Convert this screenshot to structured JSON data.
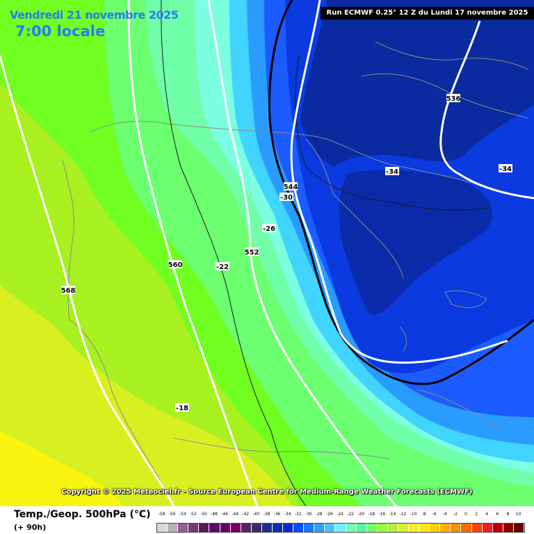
{
  "header": {
    "date": "Vendredi 21 novembre 2025",
    "time": "7:00 locale",
    "run_info": "Run ECMWF 0.25° 12 Z du Lundi 17 novembre 2025"
  },
  "copyright": "Copyright © 2025 Meteociel.fr - Source European Centre for Medium-Range Weather Forecasts (ECMWF)",
  "footer": {
    "title": "Temp./Geop. 500hPa (°C)",
    "step": "(+ 90h)"
  },
  "legend": {
    "labels": [
      "-58",
      "-56",
      "-54",
      "-52",
      "-50",
      "-48",
      "-46",
      "-44",
      "-42",
      "-40",
      "-38",
      "-36",
      "-34",
      "-32",
      "-30",
      "-28",
      "-26",
      "-24",
      "-22",
      "-20",
      "-18",
      "-16",
      "-14",
      "-12",
      "-10",
      "-8",
      "-6",
      "-4",
      "-2",
      "0",
      "2",
      "4",
      "6",
      "8",
      "10"
    ],
    "colors": [
      "#d8d8d8",
      "#b4b4b4",
      "#9a5a9a",
      "#7a3a7a",
      "#5a1a5a",
      "#5a0a6a",
      "#6a006a",
      "#7a0060",
      "#5a2060",
      "#3a2a70",
      "#202a8a",
      "#1030b0",
      "#0a2ad0",
      "#0050ff",
      "#1e78ff",
      "#2aa0ff",
      "#40c8ff",
      "#70f0ff",
      "#70ffb8",
      "#50ff90",
      "#70ff60",
      "#90ff40",
      "#b4f038",
      "#d8f028",
      "#f0f020",
      "#ffe418",
      "#ffcc10",
      "#ffb000",
      "#ff9000",
      "#ff6a00",
      "#ff4000",
      "#f02020",
      "#c00000",
      "#900000",
      "#600000"
    ]
  },
  "contour_labels": {
    "geop": [
      "568",
      "560",
      "552",
      "544",
      "536"
    ],
    "temp": [
      "-22",
      "-18",
      "-26",
      "-30",
      "-34",
      "-34"
    ]
  },
  "colors": {
    "t_minus34": "#0a2aa0",
    "t_minus32": "#0a3ae0",
    "t_minus30": "#1c5cff",
    "t_minus28": "#2a9cff",
    "t_minus26": "#40d4ff",
    "t_minus24": "#7cffe0",
    "t_minus22": "#70ffa8",
    "t_minus20": "#6cff70",
    "t_minus18": "#70ff20",
    "t_minus16": "#a8f020",
    "t_minus14": "#d8f020",
    "t_minus12": "#f8f410"
  }
}
